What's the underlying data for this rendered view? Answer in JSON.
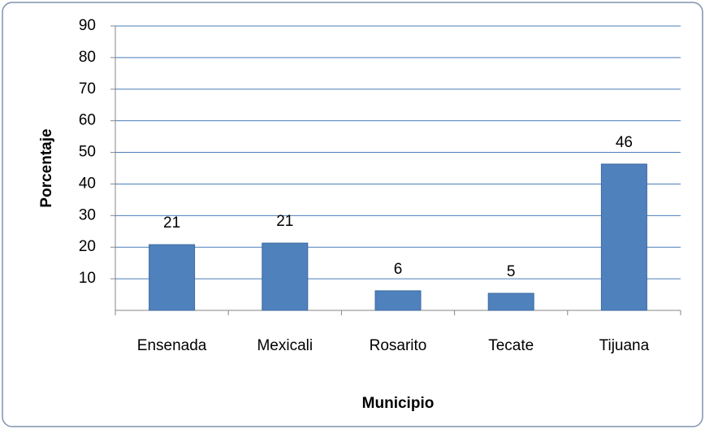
{
  "chart_data": {
    "type": "bar",
    "xlabel": "Municipio",
    "ylabel": "Porcentaje",
    "categories": [
      "Ensenada",
      "Mexicali",
      "Rosarito",
      "Tecate",
      "Tijuana"
    ],
    "values": [
      20.8,
      21.3,
      6.2,
      5.4,
      46.3
    ],
    "value_labels": [
      "21",
      "21",
      "6",
      "5",
      "46"
    ],
    "color": "#4f81bd",
    "ylim": [
      0,
      90
    ],
    "yticks": [
      10,
      20,
      30,
      40,
      50,
      60,
      70,
      80,
      90
    ],
    "grid": true
  }
}
